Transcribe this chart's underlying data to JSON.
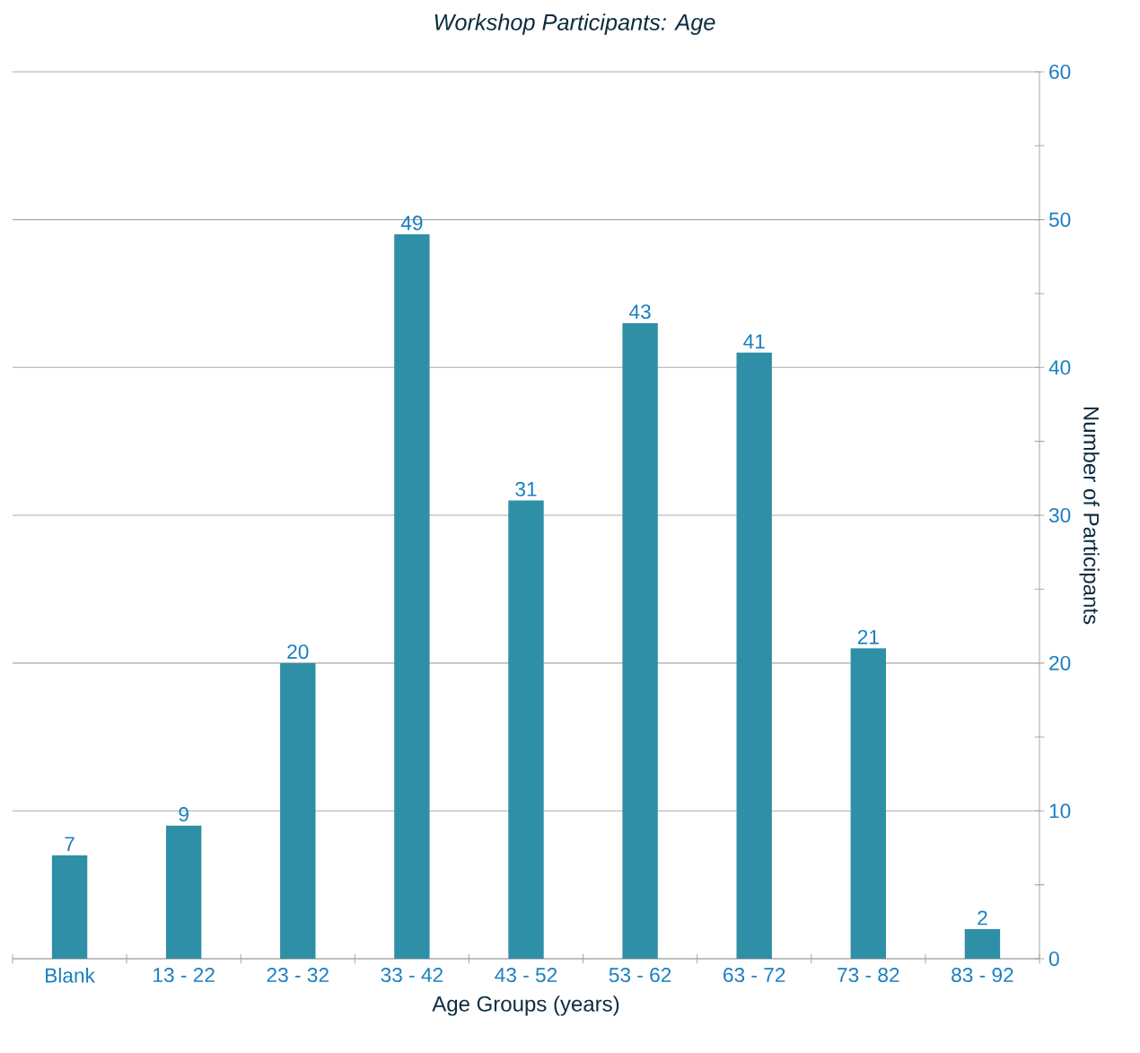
{
  "chart_data": {
    "type": "bar",
    "title": "Workshop Participants: Age",
    "xlabel": "Age Groups (years)",
    "ylabel": "Number of Participants",
    "categories": [
      "Blank",
      "13 - 22",
      "23 - 32",
      "33 - 42",
      "43 - 52",
      "53 - 62",
      "63 - 72",
      "73 - 82",
      "83 - 92"
    ],
    "values": [
      7,
      9,
      20,
      49,
      31,
      43,
      41,
      21,
      2
    ],
    "color": "#2f8fa6",
    "ylim": [
      0,
      60
    ],
    "yticks": [
      0,
      10,
      20,
      30,
      40,
      50,
      60
    ],
    "grid": "y",
    "data_labels": true
  }
}
